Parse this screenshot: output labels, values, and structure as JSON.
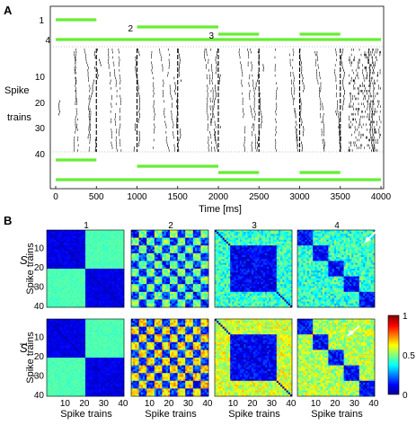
{
  "panel_a": {
    "letter": "A",
    "ylabel_1": "Spike",
    "ylabel_2": "trains",
    "xlabel": "Time  [ms]",
    "yticks": [
      "10",
      "20",
      "30",
      "40"
    ],
    "xticks": [
      "0",
      "500",
      "1000",
      "1500",
      "2000",
      "2500",
      "3000",
      "3500",
      "4000"
    ],
    "segment_labels": [
      "1",
      "2",
      "3",
      "4"
    ]
  },
  "panel_b": {
    "letter": "B",
    "col_titles": [
      "1",
      "2",
      "3",
      "4"
    ],
    "row_symbols": [
      "S",
      "S"
    ],
    "row_ylabel": "Spike trains",
    "xlabel": "Spike trains",
    "yticks": [
      "10",
      "20",
      "30",
      "40"
    ],
    "xticks": [
      "10",
      "20",
      "30",
      "40"
    ],
    "colorbar_ticks": [
      "1",
      "0.5",
      "0"
    ]
  },
  "chart_data": [
    {
      "type": "scatter",
      "subtype": "spike-raster",
      "xlabel": "Time  [ms]",
      "ylabel": "Spike trains",
      "xlim": [
        0,
        4000
      ],
      "ylim": [
        0,
        40
      ],
      "n_trains": 40,
      "line_color": "#66ee33",
      "segments_top": [
        {
          "label": "1",
          "x": [
            0,
            500
          ]
        },
        {
          "label": "2",
          "x": [
            1000,
            2000
          ]
        },
        {
          "label": "3",
          "x": [
            2000,
            2500
          ]
        },
        {
          "label": "3",
          "x": [
            3000,
            3500
          ]
        },
        {
          "label": "4",
          "x": [
            0,
            4000
          ]
        }
      ],
      "segments_bottom": [
        {
          "x": [
            0,
            500
          ]
        },
        {
          "x": [
            1000,
            2000
          ]
        },
        {
          "x": [
            2000,
            2500
          ]
        },
        {
          "x": [
            3000,
            3500
          ]
        },
        {
          "x": [
            0,
            4000
          ]
        }
      ],
      "event_lines_ms": [
        0,
        500,
        1000,
        1500,
        2000,
        2500,
        3000,
        3500
      ]
    },
    {
      "type": "heatmap",
      "rows": 2,
      "cols": 4,
      "col_titles": [
        "1",
        "2",
        "3",
        "4"
      ],
      "xlabel": "Spike trains",
      "ylabel": "Spike trains",
      "axis_range": [
        1,
        40
      ],
      "colorbar_range": [
        0,
        1
      ],
      "colormap": "jet"
    }
  ]
}
